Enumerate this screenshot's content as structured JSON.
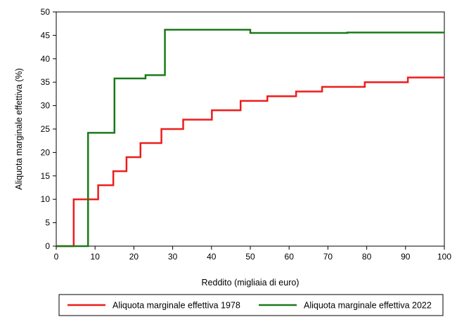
{
  "chart_data": {
    "type": "line",
    "xlabel": "Reddito (migliaia di euro)",
    "ylabel": "Aliquota marginale effettiva (%)",
    "xlim": [
      0,
      100
    ],
    "ylim": [
      0,
      50
    ],
    "xticks": [
      0,
      10,
      20,
      30,
      40,
      50,
      60,
      70,
      80,
      90,
      100
    ],
    "yticks": [
      0,
      5,
      10,
      15,
      20,
      25,
      30,
      35,
      40,
      45,
      50
    ],
    "grid": false,
    "legend_position": "bottom",
    "step": true,
    "series": [
      {
        "name": "Aliquota marginale effettiva 1978",
        "color": "#ee1c1c",
        "points": [
          [
            0,
            0
          ],
          [
            4.5,
            0
          ],
          [
            4.5,
            10
          ],
          [
            10.8,
            10
          ],
          [
            10.8,
            13
          ],
          [
            14.7,
            13
          ],
          [
            14.7,
            16
          ],
          [
            18.1,
            16
          ],
          [
            18.1,
            19
          ],
          [
            21.7,
            19
          ],
          [
            21.7,
            22
          ],
          [
            27.1,
            22
          ],
          [
            27.1,
            25
          ],
          [
            32.7,
            25
          ],
          [
            32.7,
            27
          ],
          [
            40.1,
            27
          ],
          [
            40.1,
            29
          ],
          [
            47.5,
            29
          ],
          [
            47.5,
            31
          ],
          [
            54.4,
            31
          ],
          [
            54.4,
            32
          ],
          [
            61.8,
            32
          ],
          [
            61.8,
            33
          ],
          [
            68.5,
            33
          ],
          [
            68.5,
            34
          ],
          [
            79.5,
            34
          ],
          [
            79.5,
            35
          ],
          [
            90.6,
            35
          ],
          [
            90.6,
            36
          ],
          [
            100,
            36
          ]
        ]
      },
      {
        "name": "Aliquota marginale effettiva 2022",
        "color": "#1a7a1a",
        "points": [
          [
            0,
            0
          ],
          [
            8.2,
            0
          ],
          [
            8.2,
            24.2
          ],
          [
            15,
            24.2
          ],
          [
            15,
            35.8
          ],
          [
            23,
            35.8
          ],
          [
            23,
            36.5
          ],
          [
            28,
            36.5
          ],
          [
            28,
            46.2
          ],
          [
            50,
            46.2
          ],
          [
            50,
            45.5
          ],
          [
            75,
            45.5
          ],
          [
            75,
            45.6
          ],
          [
            100,
            45.6
          ]
        ]
      }
    ]
  }
}
